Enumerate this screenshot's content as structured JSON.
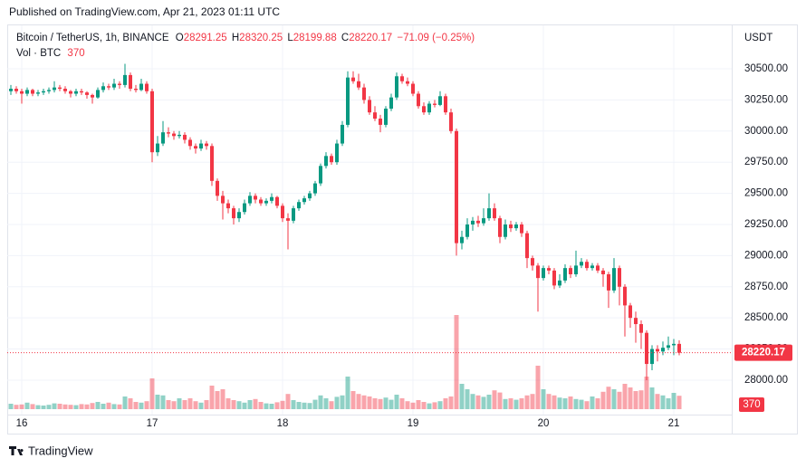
{
  "header": "Published on TradingView.com, Apr 21, 2023 01:11 UTC",
  "footer": "TradingView",
  "chart_data": {
    "type": "candlestick",
    "title": "Bitcoin / TetherUS, 1h, BINANCE",
    "ohlc_keys": [
      "O",
      "H",
      "L",
      "C"
    ],
    "change": "−71.09 (−0.25%)",
    "volume_label": "Vol · BTC",
    "currency": "USDT",
    "up_color": "#089981",
    "down_color": "#f23645",
    "grid": true,
    "ylim": [
      27767,
      30849
    ],
    "yticks": [
      {
        "value": 28000,
        "label": "28000.00"
      },
      {
        "value": 28250,
        "label": "28250.00"
      },
      {
        "value": 28500,
        "label": "28500.00"
      },
      {
        "value": 28750,
        "label": "28750.00"
      },
      {
        "value": 29000,
        "label": "29000.00"
      },
      {
        "value": 29250,
        "label": "29250.00"
      },
      {
        "value": 29500,
        "label": "29500.00"
      },
      {
        "value": 29750,
        "label": "29750.00"
      },
      {
        "value": 30000,
        "label": "30000.00"
      },
      {
        "value": 30250,
        "label": "30250.00"
      },
      {
        "value": 30500,
        "label": "30500.00"
      }
    ],
    "xticks": [
      {
        "value": 2,
        "label": "16"
      },
      {
        "value": 26,
        "label": "17"
      },
      {
        "value": 50,
        "label": "18"
      },
      {
        "value": 74,
        "label": "19"
      },
      {
        "value": 98,
        "label": "20"
      },
      {
        "value": 122,
        "label": "21"
      }
    ],
    "vlim": [
      0,
      10600
    ],
    "ohlc": [
      [
        30320,
        30370,
        30290,
        30340
      ],
      [
        30340,
        30360,
        30300,
        30320
      ],
      [
        30320,
        30340,
        30220,
        30300
      ],
      [
        30300,
        30350,
        30280,
        30330
      ],
      [
        30330,
        30340,
        30280,
        30300
      ],
      [
        30300,
        30330,
        30280,
        30310
      ],
      [
        30310,
        30340,
        30290,
        30320
      ],
      [
        30320,
        30350,
        30300,
        30330
      ],
      [
        30330,
        30400,
        30310,
        30350
      ],
      [
        30350,
        30370,
        30320,
        30340
      ],
      [
        30340,
        30360,
        30300,
        30320
      ],
      [
        30320,
        30330,
        30270,
        30300
      ],
      [
        30300,
        30340,
        30280,
        30320
      ],
      [
        30320,
        30340,
        30290,
        30310
      ],
      [
        30310,
        30320,
        30260,
        30290
      ],
      [
        30290,
        30300,
        30220,
        30270
      ],
      [
        30270,
        30350,
        30260,
        30330
      ],
      [
        30330,
        30390,
        30310,
        30360
      ],
      [
        30360,
        30380,
        30330,
        30350
      ],
      [
        30350,
        30420,
        30330,
        30380
      ],
      [
        30380,
        30400,
        30340,
        30370
      ],
      [
        30370,
        30540,
        30350,
        30450
      ],
      [
        30450,
        30470,
        30320,
        30340
      ],
      [
        30340,
        30370,
        30310,
        30330
      ],
      [
        30330,
        30420,
        30320,
        30380
      ],
      [
        30380,
        30400,
        30300,
        30320
      ],
      [
        30320,
        30340,
        29750,
        29830
      ],
      [
        29830,
        29960,
        29800,
        29900
      ],
      [
        29900,
        30080,
        29880,
        29990
      ],
      [
        29990,
        30030,
        29950,
        29980
      ],
      [
        29980,
        30000,
        29930,
        29960
      ],
      [
        29960,
        30000,
        29940,
        29970
      ],
      [
        29970,
        29990,
        29900,
        29930
      ],
      [
        29930,
        29950,
        29850,
        29880
      ],
      [
        29880,
        29900,
        29820,
        29860
      ],
      [
        29860,
        29930,
        29840,
        29900
      ],
      [
        29900,
        29920,
        29850,
        29880
      ],
      [
        29880,
        29900,
        29560,
        29600
      ],
      [
        29600,
        29620,
        29440,
        29480
      ],
      [
        29480,
        29520,
        29290,
        29420
      ],
      [
        29420,
        29450,
        29340,
        29380
      ],
      [
        29380,
        29400,
        29250,
        29300
      ],
      [
        29300,
        29380,
        29270,
        29350
      ],
      [
        29350,
        29450,
        29330,
        29420
      ],
      [
        29420,
        29510,
        29400,
        29480
      ],
      [
        29480,
        29500,
        29420,
        29450
      ],
      [
        29450,
        29470,
        29400,
        29420
      ],
      [
        29420,
        29460,
        29400,
        29440
      ],
      [
        29440,
        29500,
        29420,
        29470
      ],
      [
        29470,
        29480,
        29380,
        29400
      ],
      [
        29400,
        29420,
        29270,
        29300
      ],
      [
        29300,
        29340,
        29050,
        29280
      ],
      [
        29280,
        29400,
        29260,
        29380
      ],
      [
        29380,
        29450,
        29360,
        29430
      ],
      [
        29430,
        29480,
        29410,
        29460
      ],
      [
        29460,
        29520,
        29440,
        29500
      ],
      [
        29500,
        29600,
        29480,
        29580
      ],
      [
        29580,
        29740,
        29560,
        29720
      ],
      [
        29720,
        29830,
        29700,
        29800
      ],
      [
        29800,
        29820,
        29730,
        29750
      ],
      [
        29750,
        29930,
        29730,
        29900
      ],
      [
        29900,
        30080,
        29880,
        30050
      ],
      [
        30050,
        30480,
        30030,
        30430
      ],
      [
        30430,
        30480,
        30380,
        30400
      ],
      [
        30400,
        30460,
        30330,
        30350
      ],
      [
        30350,
        30380,
        30220,
        30250
      ],
      [
        30250,
        30280,
        30130,
        30150
      ],
      [
        30150,
        30200,
        30080,
        30100
      ],
      [
        30100,
        30130,
        29990,
        30050
      ],
      [
        30050,
        30200,
        30030,
        30180
      ],
      [
        30180,
        30300,
        30160,
        30270
      ],
      [
        30270,
        30470,
        30250,
        30440
      ],
      [
        30440,
        30460,
        30380,
        30400
      ],
      [
        30400,
        30430,
        30360,
        30380
      ],
      [
        30380,
        30400,
        30280,
        30300
      ],
      [
        30300,
        30320,
        30180,
        30200
      ],
      [
        30200,
        30230,
        30130,
        30150
      ],
      [
        30150,
        30240,
        30130,
        30220
      ],
      [
        30220,
        30250,
        30190,
        30210
      ],
      [
        30210,
        30320,
        30200,
        30280
      ],
      [
        30280,
        30300,
        30130,
        30150
      ],
      [
        30150,
        30180,
        29980,
        30000
      ],
      [
        30000,
        30020,
        29000,
        29100
      ],
      [
        29100,
        29200,
        29050,
        29150
      ],
      [
        29150,
        29300,
        29130,
        29250
      ],
      [
        29250,
        29310,
        29200,
        29280
      ],
      [
        29280,
        29320,
        29230,
        29260
      ],
      [
        29260,
        29380,
        29240,
        29300
      ],
      [
        29300,
        29500,
        29280,
        29380
      ],
      [
        29380,
        29420,
        29280,
        29300
      ],
      [
        29300,
        29320,
        29100,
        29150
      ],
      [
        29150,
        29290,
        29130,
        29250
      ],
      [
        29250,
        29280,
        29190,
        29220
      ],
      [
        29220,
        29270,
        29200,
        29250
      ],
      [
        29250,
        29270,
        29150,
        29180
      ],
      [
        29180,
        29200,
        28900,
        28980
      ],
      [
        28980,
        29000,
        28880,
        28920
      ],
      [
        28920,
        28940,
        28550,
        28820
      ],
      [
        28820,
        28920,
        28800,
        28900
      ],
      [
        28900,
        28920,
        28850,
        28880
      ],
      [
        28880,
        28900,
        28730,
        28760
      ],
      [
        28760,
        28850,
        28740,
        28800
      ],
      [
        28800,
        28930,
        28780,
        28900
      ],
      [
        28900,
        28920,
        28820,
        28850
      ],
      [
        28850,
        29040,
        28830,
        28920
      ],
      [
        28920,
        28980,
        28900,
        28950
      ],
      [
        28950,
        28970,
        28880,
        28900
      ],
      [
        28900,
        28940,
        28880,
        28920
      ],
      [
        28920,
        28940,
        28860,
        28880
      ],
      [
        28880,
        28900,
        28750,
        28850
      ],
      [
        28850,
        28870,
        28580,
        28720
      ],
      [
        28720,
        28980,
        28700,
        28900
      ],
      [
        28900,
        28920,
        28600,
        28750
      ],
      [
        28750,
        28770,
        28350,
        28600
      ],
      [
        28600,
        28620,
        28420,
        28500
      ],
      [
        28500,
        28550,
        28300,
        28450
      ],
      [
        28450,
        28480,
        28250,
        28380
      ],
      [
        28380,
        28400,
        28000,
        28130
      ],
      [
        28130,
        28280,
        28080,
        28250
      ],
      [
        28250,
        28280,
        28150,
        28230
      ],
      [
        28230,
        28310,
        28200,
        28260
      ],
      [
        28260,
        28350,
        28240,
        28280
      ],
      [
        28280,
        28330,
        28200,
        28291.25
      ],
      [
        28291.25,
        28320.25,
        28199.88,
        28220.17
      ]
    ],
    "volume": [
      150,
      120,
      130,
      180,
      140,
      110,
      100,
      120,
      160,
      150,
      130,
      120,
      110,
      140,
      130,
      170,
      200,
      150,
      180,
      140,
      130,
      350,
      300,
      200,
      180,
      220,
      850,
      400,
      380,
      250,
      220,
      300,
      250,
      300,
      220,
      180,
      250,
      650,
      500,
      550,
      300,
      250,
      220,
      180,
      250,
      280,
      200,
      160,
      150,
      190,
      230,
      420,
      250,
      200,
      180,
      170,
      260,
      380,
      300,
      220,
      340,
      380,
      900,
      500,
      420,
      380,
      350,
      300,
      280,
      320,
      260,
      400,
      300,
      220,
      180,
      250,
      200,
      160,
      190,
      220,
      300,
      350,
      2600,
      700,
      550,
      420,
      380,
      340,
      400,
      520,
      460,
      280,
      300,
      260,
      300,
      380,
      420,
      1200,
      550,
      420,
      380,
      320,
      300,
      350,
      280,
      260,
      220,
      350,
      300,
      480,
      620,
      550,
      480,
      700,
      600,
      500,
      520,
      900,
      600,
      420,
      380,
      300,
      450,
      370
    ]
  }
}
